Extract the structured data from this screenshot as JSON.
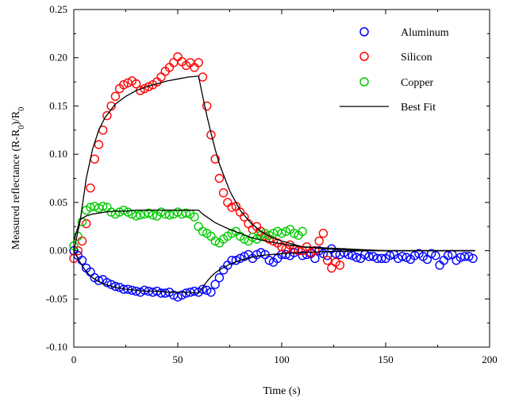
{
  "chart_data": {
    "type": "scatter",
    "title": "",
    "xlabel": "Time (s)",
    "ylabel_main": "Measured reflectance (R-R",
    "ylabel_sub": "0",
    "ylabel_mid": ")/R",
    "xlim": [
      0,
      200
    ],
    "ylim": [
      -0.1,
      0.25
    ],
    "xticks": [
      0,
      50,
      100,
      150,
      200
    ],
    "yticks": [
      -0.1,
      -0.05,
      0.0,
      0.05,
      0.1,
      0.15,
      0.2,
      0.25
    ],
    "xtick_labels": [
      "0",
      "50",
      "100",
      "150",
      "200"
    ],
    "ytick_labels": [
      "-0.10",
      "-0.05",
      "0.00",
      "0.05",
      "0.10",
      "0.15",
      "0.20",
      "0.25"
    ],
    "grid": false,
    "legend_position": "top-right",
    "legend": [
      {
        "label": "Aluminum",
        "marker": "circle",
        "color": "#0000ff"
      },
      {
        "label": "Silicon",
        "marker": "circle",
        "color": "#ff0000"
      },
      {
        "label": "Copper",
        "marker": "circle",
        "color": "#00cc00"
      },
      {
        "label": "Best Fit",
        "marker": "line",
        "color": "#000000"
      }
    ],
    "series": [
      {
        "name": "Aluminum",
        "color": "#0000ff",
        "x": [
          0,
          2,
          4,
          6,
          8,
          10,
          12,
          14,
          16,
          18,
          20,
          22,
          24,
          26,
          28,
          30,
          32,
          34,
          36,
          38,
          40,
          42,
          44,
          46,
          48,
          50,
          52,
          54,
          56,
          58,
          60,
          62,
          64,
          66,
          68,
          70,
          72,
          74,
          76,
          78,
          80,
          82,
          84,
          86,
          88,
          90,
          92,
          94,
          96,
          98,
          100,
          102,
          104,
          106,
          108,
          110,
          112,
          114,
          116,
          118,
          120,
          122,
          124,
          126,
          128,
          130,
          132,
          134,
          136,
          138,
          140,
          142,
          144,
          146,
          148,
          150,
          152,
          154,
          156,
          158,
          160,
          162,
          164,
          166,
          168,
          170,
          172,
          174,
          176,
          178,
          180,
          182,
          184,
          186,
          188,
          190,
          192
        ],
        "y": [
          0.0,
          -0.005,
          -0.01,
          -0.018,
          -0.022,
          -0.028,
          -0.031,
          -0.03,
          -0.033,
          -0.035,
          -0.037,
          -0.038,
          -0.04,
          -0.04,
          -0.041,
          -0.042,
          -0.043,
          -0.041,
          -0.042,
          -0.043,
          -0.042,
          -0.044,
          -0.044,
          -0.043,
          -0.046,
          -0.048,
          -0.046,
          -0.044,
          -0.043,
          -0.042,
          -0.043,
          -0.04,
          -0.041,
          -0.043,
          -0.035,
          -0.028,
          -0.02,
          -0.015,
          -0.01,
          -0.01,
          -0.008,
          -0.006,
          -0.004,
          -0.008,
          -0.004,
          -0.002,
          -0.004,
          -0.01,
          -0.012,
          -0.008,
          -0.004,
          -0.004,
          -0.005,
          -0.002,
          0.0,
          -0.005,
          -0.004,
          -0.003,
          -0.008,
          0.0,
          -0.003,
          -0.005,
          0.002,
          -0.003,
          -0.004,
          -0.002,
          -0.004,
          -0.005,
          -0.007,
          -0.008,
          -0.004,
          -0.006,
          -0.006,
          -0.008,
          -0.008,
          -0.008,
          -0.005,
          -0.004,
          -0.008,
          -0.006,
          -0.007,
          -0.009,
          -0.005,
          -0.003,
          -0.006,
          -0.009,
          -0.003,
          -0.005,
          -0.015,
          -0.01,
          -0.005,
          -0.004,
          -0.01,
          -0.007,
          -0.006,
          -0.006,
          -0.008
        ]
      },
      {
        "name": "Silicon",
        "color": "#ff0000",
        "x": [
          0,
          2,
          4,
          6,
          8,
          10,
          12,
          14,
          16,
          18,
          20,
          22,
          24,
          26,
          28,
          30,
          32,
          34,
          36,
          38,
          40,
          42,
          44,
          46,
          48,
          50,
          52,
          54,
          56,
          58,
          60,
          62,
          64,
          66,
          68,
          70,
          72,
          74,
          76,
          78,
          80,
          82,
          84,
          86,
          88,
          90,
          92,
          94,
          96,
          98,
          100,
          102,
          104,
          106,
          108,
          110,
          112,
          114,
          116,
          118,
          120,
          122,
          124,
          126,
          128
        ],
        "y": [
          -0.008,
          0.0,
          0.01,
          0.028,
          0.065,
          0.095,
          0.11,
          0.125,
          0.14,
          0.15,
          0.16,
          0.168,
          0.172,
          0.174,
          0.176,
          0.173,
          0.166,
          0.168,
          0.17,
          0.172,
          0.175,
          0.18,
          0.186,
          0.19,
          0.195,
          0.201,
          0.196,
          0.192,
          0.195,
          0.19,
          0.195,
          0.18,
          0.15,
          0.12,
          0.095,
          0.075,
          0.06,
          0.05,
          0.045,
          0.046,
          0.04,
          0.035,
          0.028,
          0.022,
          0.025,
          0.02,
          0.015,
          0.012,
          0.01,
          0.008,
          0.004,
          0.002,
          0.006,
          0.002,
          0.0,
          0.0,
          0.004,
          -0.002,
          0.0,
          0.01,
          0.018,
          -0.01,
          -0.018,
          -0.012,
          -0.015
        ]
      },
      {
        "name": "Copper",
        "color": "#00cc00",
        "x": [
          0,
          2,
          4,
          6,
          8,
          10,
          12,
          14,
          16,
          18,
          20,
          22,
          24,
          26,
          28,
          30,
          32,
          34,
          36,
          38,
          40,
          42,
          44,
          46,
          48,
          50,
          52,
          54,
          56,
          58,
          60,
          62,
          64,
          66,
          68,
          70,
          72,
          74,
          76,
          78,
          80,
          82,
          84,
          86,
          88,
          90,
          92,
          94,
          96,
          98,
          100,
          102,
          104,
          106,
          108,
          110
        ],
        "y": [
          0.005,
          0.015,
          0.03,
          0.042,
          0.045,
          0.046,
          0.044,
          0.046,
          0.045,
          0.04,
          0.038,
          0.04,
          0.042,
          0.04,
          0.038,
          0.036,
          0.037,
          0.038,
          0.039,
          0.037,
          0.036,
          0.04,
          0.038,
          0.037,
          0.038,
          0.04,
          0.038,
          0.039,
          0.038,
          0.035,
          0.025,
          0.02,
          0.018,
          0.015,
          0.01,
          0.008,
          0.012,
          0.015,
          0.018,
          0.02,
          0.015,
          0.012,
          0.01,
          0.014,
          0.012,
          0.016,
          0.018,
          0.016,
          0.018,
          0.02,
          0.018,
          0.02,
          0.022,
          0.018,
          0.016,
          0.02
        ]
      }
    ],
    "fits": [
      {
        "name": "Aluminum fit",
        "x": [
          0,
          3,
          6,
          9,
          12,
          15,
          20,
          25,
          30,
          35,
          40,
          45,
          50,
          55,
          60,
          62,
          64,
          66,
          68,
          70,
          75,
          80,
          85,
          90,
          95,
          100,
          110,
          120,
          130,
          140,
          150,
          160,
          170,
          180,
          190,
          193
        ],
        "y": [
          0.0,
          -0.012,
          -0.022,
          -0.028,
          -0.032,
          -0.035,
          -0.038,
          -0.04,
          -0.041,
          -0.042,
          -0.042,
          -0.043,
          -0.043,
          -0.043,
          -0.044,
          -0.038,
          -0.032,
          -0.027,
          -0.023,
          -0.02,
          -0.014,
          -0.01,
          -0.007,
          -0.005,
          -0.004,
          -0.003,
          -0.002,
          -0.001,
          -0.0005,
          0.0,
          0.0,
          0.0,
          0.0,
          0.0,
          0.0,
          0.0
        ]
      },
      {
        "name": "Silicon fit",
        "x": [
          0,
          3,
          6,
          9,
          12,
          15,
          20,
          25,
          30,
          35,
          40,
          45,
          50,
          55,
          60,
          62,
          64,
          66,
          68,
          70,
          75,
          80,
          85,
          90,
          95,
          100,
          110,
          120,
          130,
          140,
          150,
          160,
          170,
          180,
          190,
          193
        ],
        "y": [
          0.0,
          0.03,
          0.075,
          0.105,
          0.125,
          0.138,
          0.152,
          0.16,
          0.166,
          0.17,
          0.173,
          0.176,
          0.178,
          0.18,
          0.181,
          0.16,
          0.14,
          0.122,
          0.105,
          0.09,
          0.062,
          0.042,
          0.029,
          0.02,
          0.014,
          0.01,
          0.004,
          0.002,
          0.001,
          0.0,
          0.0,
          0.0,
          0.0,
          0.0,
          0.0,
          0.0
        ]
      },
      {
        "name": "Copper fit",
        "x": [
          0,
          3,
          6,
          9,
          12,
          15,
          20,
          25,
          30,
          35,
          40,
          45,
          50,
          55,
          60,
          62,
          64,
          66,
          68,
          70,
          75,
          80,
          85,
          90,
          95,
          100,
          110,
          120,
          130,
          140,
          150,
          160,
          170,
          180,
          190,
          193
        ],
        "y": [
          0.01,
          0.032,
          0.036,
          0.038,
          0.039,
          0.04,
          0.041,
          0.041,
          0.042,
          0.042,
          0.042,
          0.042,
          0.042,
          0.042,
          0.042,
          0.038,
          0.035,
          0.032,
          0.029,
          0.027,
          0.022,
          0.018,
          0.014,
          0.011,
          0.009,
          0.007,
          0.004,
          0.003,
          0.002,
          0.001,
          0.0,
          0.0,
          0.0,
          0.0,
          0.0,
          0.0
        ]
      }
    ]
  }
}
